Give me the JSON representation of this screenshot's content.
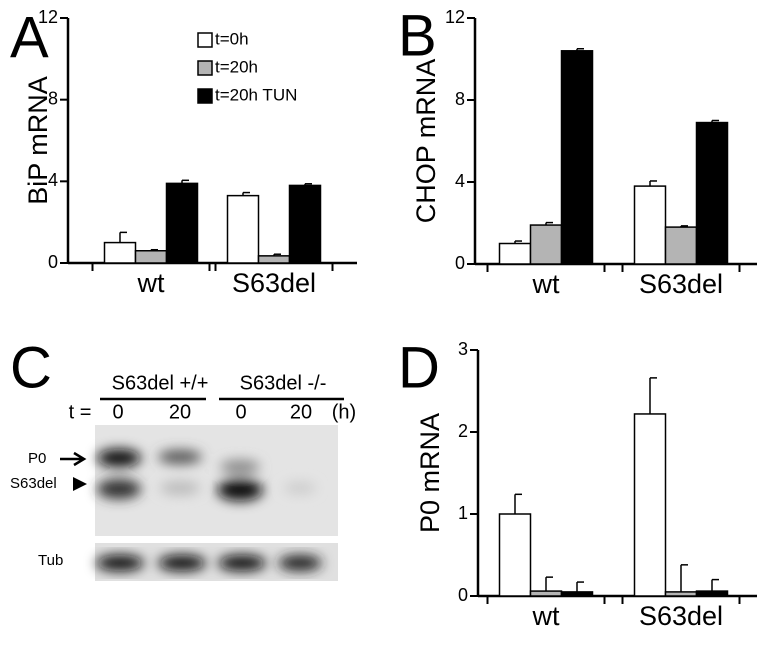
{
  "chart_data": [
    {
      "type": "bar",
      "panel": "A",
      "y_label": "BiP mRNA",
      "categories": [
        "wt",
        "S63del"
      ],
      "ylim": [
        0,
        12
      ],
      "yticks": [
        0,
        4,
        8,
        12
      ],
      "series": [
        {
          "name": "t=0h",
          "color": "#ffffff",
          "values": [
            1.0,
            3.3
          ],
          "errors": [
            0.5,
            0.15
          ]
        },
        {
          "name": "t=20h",
          "color": "#b4b4b4",
          "values": [
            0.6,
            0.35
          ],
          "errors": [
            0.05,
            0.08
          ]
        },
        {
          "name": "t=20h TUN",
          "color": "#000000",
          "values": [
            3.9,
            3.8
          ],
          "errors": [
            0.15,
            0.08
          ]
        }
      ]
    },
    {
      "type": "bar",
      "panel": "B",
      "y_label": "CHOP mRNA",
      "categories": [
        "wt",
        "S63del"
      ],
      "ylim": [
        0,
        12
      ],
      "yticks": [
        0,
        4,
        8,
        12
      ],
      "series": [
        {
          "color": "#ffffff",
          "values": [
            1.0,
            3.8
          ],
          "errors": [
            0.12,
            0.25
          ]
        },
        {
          "color": "#b4b4b4",
          "values": [
            1.9,
            1.8
          ],
          "errors": [
            0.12,
            0.06
          ]
        },
        {
          "color": "#000000",
          "values": [
            10.4,
            6.9
          ],
          "errors": [
            0.1,
            0.1
          ]
        }
      ]
    },
    {
      "type": "bar",
      "panel": "D",
      "y_label": "P0 mRNA",
      "categories": [
        "wt",
        "S63del"
      ],
      "ylim": [
        0,
        3
      ],
      "yticks": [
        0,
        1,
        2,
        3
      ],
      "series": [
        {
          "color": "#ffffff",
          "values": [
            1.0,
            2.22
          ],
          "errors": [
            0.24,
            0.44
          ]
        },
        {
          "color": "#b4b4b4",
          "values": [
            0.06,
            0.05
          ],
          "errors": [
            0.17,
            0.33
          ]
        },
        {
          "color": "#000000",
          "values": [
            0.05,
            0.06
          ],
          "errors": [
            0.12,
            0.14
          ]
        }
      ]
    }
  ],
  "blot": {
    "panel": "C",
    "groups": [
      "S63del +/+",
      "S63del -/-"
    ],
    "time_label": "t =",
    "times": [
      "0",
      "20",
      "0",
      "20"
    ],
    "unit": "(h)",
    "bands": [
      "P0",
      "S63del"
    ],
    "loading": "Tub"
  }
}
